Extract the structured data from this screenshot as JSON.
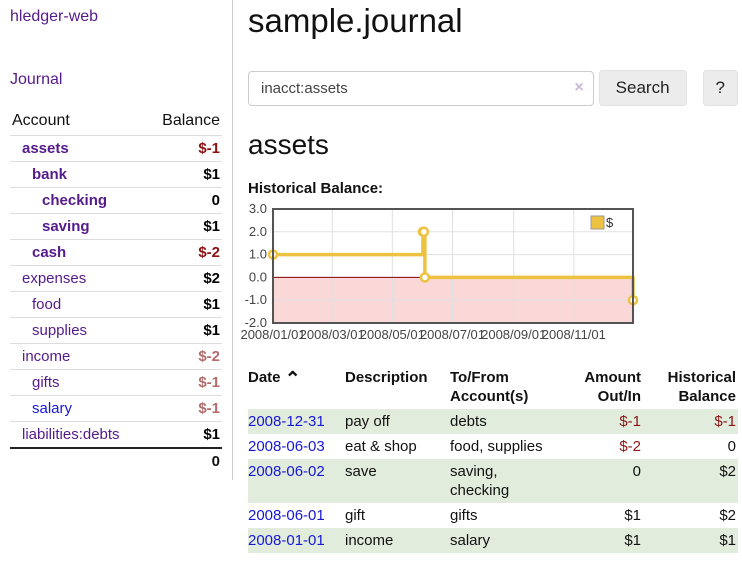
{
  "colors": {
    "link_purple": "#551a8b",
    "link_blue": "#1618d6",
    "neg_strong": "#8b1010",
    "neg_soft": "#b36b6b",
    "row_green": "#e2ecdd",
    "chart_line": "#edc240",
    "chart_negative_fill": "#fad8d8",
    "chart_zero_line": "#8b0000",
    "chart_border": "#545454",
    "chart_grid": "#e0e0e0"
  },
  "sidebar": {
    "brand": "hledger-web",
    "journal_link": "Journal",
    "accounts_table": {
      "headers": {
        "account": "Account",
        "balance": "Balance"
      },
      "rows": [
        {
          "account": "assets",
          "depth": 1,
          "bold": true,
          "link": "purple",
          "balance": "$-1",
          "balance_style": "neg-strong"
        },
        {
          "account": "bank",
          "depth": 2,
          "bold": true,
          "link": "purple",
          "balance": "$1",
          "balance_style": "pos"
        },
        {
          "account": "checking",
          "depth": 3,
          "bold": true,
          "link": "purple",
          "balance": "0",
          "balance_style": "pos"
        },
        {
          "account": "saving",
          "depth": 3,
          "bold": true,
          "link": "purple",
          "balance": "$1",
          "balance_style": "pos"
        },
        {
          "account": "cash",
          "depth": 2,
          "bold": true,
          "link": "purple",
          "balance": "$-2",
          "balance_style": "neg-strong"
        },
        {
          "account": "expenses",
          "depth": 1,
          "bold": false,
          "link": "purple",
          "balance": "$2",
          "balance_style": "pos"
        },
        {
          "account": "food",
          "depth": 2,
          "bold": false,
          "link": "purple",
          "balance": "$1",
          "balance_style": "pos"
        },
        {
          "account": "supplies",
          "depth": 2,
          "bold": false,
          "link": "purple",
          "balance": "$1",
          "balance_style": "pos"
        },
        {
          "account": "income",
          "depth": 1,
          "bold": false,
          "link": "purple",
          "balance": "$-2",
          "balance_style": "neg-soft"
        },
        {
          "account": "gifts",
          "depth": 2,
          "bold": false,
          "link": "purple",
          "balance": "$-1",
          "balance_style": "neg-soft"
        },
        {
          "account": "salary",
          "depth": 2,
          "bold": false,
          "link": "blue",
          "balance": "$-1",
          "balance_style": "neg-soft"
        },
        {
          "account": "liabilities:debts",
          "depth": 1,
          "bold": false,
          "link": "purple",
          "balance": "$1",
          "balance_style": "pos"
        }
      ],
      "total": "0"
    }
  },
  "header": {
    "title": "sample.journal"
  },
  "search": {
    "value": "inacct:assets",
    "clear_icon": "×",
    "button_label": "Search",
    "help_label": "?"
  },
  "account_page": {
    "title": "assets",
    "chart_heading": "Historical Balance:"
  },
  "chart_data": {
    "type": "line",
    "step": "after",
    "title": "Historical Balance",
    "series": [
      {
        "name": "$",
        "color": "#edc240",
        "points": [
          [
            "2008-01-01",
            1
          ],
          [
            "2008-06-01",
            2
          ],
          [
            "2008-06-02",
            2
          ],
          [
            "2008-06-03",
            0
          ],
          [
            "2008-12-31",
            -1
          ]
        ]
      }
    ],
    "x_ticks": [
      "2008/01/01",
      "2008/03/01",
      "2008/05/01",
      "2008/07/01",
      "2008/09/01",
      "2008/11/01"
    ],
    "y_ticks": [
      3.0,
      2.0,
      1.0,
      0.0,
      -1.0,
      -2.0
    ],
    "xlim": [
      "2008-01-01",
      "2008-12-31"
    ],
    "ylim": [
      -2,
      3
    ],
    "grid": true,
    "legend_position": "top-right",
    "legend_label": "$"
  },
  "register_table": {
    "headers": {
      "date": "Date",
      "sort_icon": "⌃",
      "description": "Description",
      "accounts": "To/From Account(s)",
      "amount": "Amount Out/In",
      "balance": "Historical Balance"
    },
    "rows": [
      {
        "date": "2008-12-31",
        "description": "pay off",
        "accounts": "debts",
        "amount": "$-1",
        "amount_negative": true,
        "balance": "$-1",
        "balance_negative": true
      },
      {
        "date": "2008-06-03",
        "description": "eat & shop",
        "accounts": "food, supplies",
        "amount": "$-2",
        "amount_negative": true,
        "balance": "0",
        "balance_negative": false
      },
      {
        "date": "2008-06-02",
        "description": "save",
        "accounts": "saving, checking",
        "amount": "0",
        "amount_negative": false,
        "balance": "$2",
        "balance_negative": false
      },
      {
        "date": "2008-06-01",
        "description": "gift",
        "accounts": "gifts",
        "amount": "$1",
        "amount_negative": false,
        "balance": "$2",
        "balance_negative": false
      },
      {
        "date": "2008-01-01",
        "description": "income",
        "accounts": "salary",
        "amount": "$1",
        "amount_negative": false,
        "balance": "$1",
        "balance_negative": false
      }
    ]
  }
}
